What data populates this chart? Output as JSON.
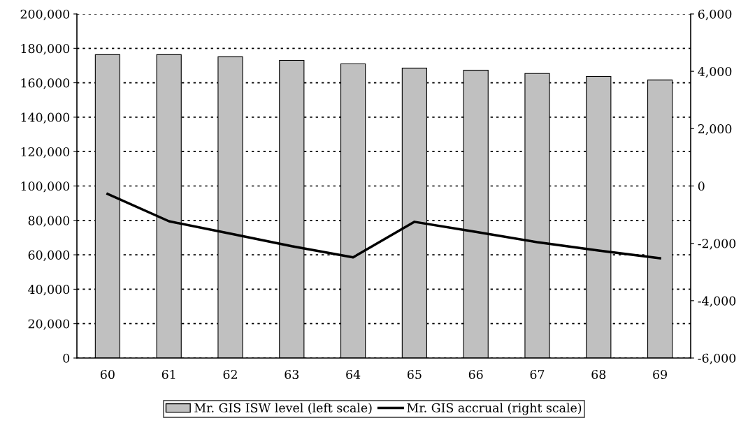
{
  "chart_data": {
    "type": "bar",
    "categories": [
      "60",
      "61",
      "62",
      "63",
      "64",
      "65",
      "66",
      "67",
      "68",
      "69"
    ],
    "series": [
      {
        "name": "Mr. GIS ISW level (left scale)",
        "color": "#c0c0c0",
        "values": [
          176300,
          176300,
          175100,
          173000,
          171000,
          168500,
          167300,
          165400,
          163700,
          161600
        ]
      },
      {
        "name": "Mr. GIS accrual (right scale)",
        "type": "line",
        "axis": "y2",
        "color": "#000000",
        "values": [
          -275,
          -1230,
          -1660,
          -2100,
          -2490,
          -1250,
          -1600,
          -1960,
          -2250,
          -2520
        ]
      }
    ],
    "ylim": [
      0,
      200000
    ],
    "yticks": [
      {
        "value": 0,
        "label": "0"
      },
      {
        "value": 20000,
        "label": "20,000"
      },
      {
        "value": 40000,
        "label": "40,000"
      },
      {
        "value": 60000,
        "label": "60,000"
      },
      {
        "value": 80000,
        "label": "80,000"
      },
      {
        "value": 100000,
        "label": "100,000"
      },
      {
        "value": 120000,
        "label": "120,000"
      },
      {
        "value": 140000,
        "label": "140,000"
      },
      {
        "value": 160000,
        "label": "160,000"
      },
      {
        "value": 180000,
        "label": "180,000"
      },
      {
        "value": 200000,
        "label": "200,000"
      }
    ],
    "y2lim": [
      -6000,
      6000
    ],
    "y2ticks": [
      {
        "value": -6000,
        "label": "-6,000"
      },
      {
        "value": -4000,
        "label": "-4,000"
      },
      {
        "value": -2000,
        "label": "-2,000"
      },
      {
        "value": 0,
        "label": "0"
      },
      {
        "value": 2000,
        "label": "2,000"
      },
      {
        "value": 4000,
        "label": "4,000"
      },
      {
        "value": 6000,
        "label": "6,000"
      }
    ],
    "grid": "y",
    "legend": "bottom",
    "line_style": "solid",
    "marker": "none"
  }
}
